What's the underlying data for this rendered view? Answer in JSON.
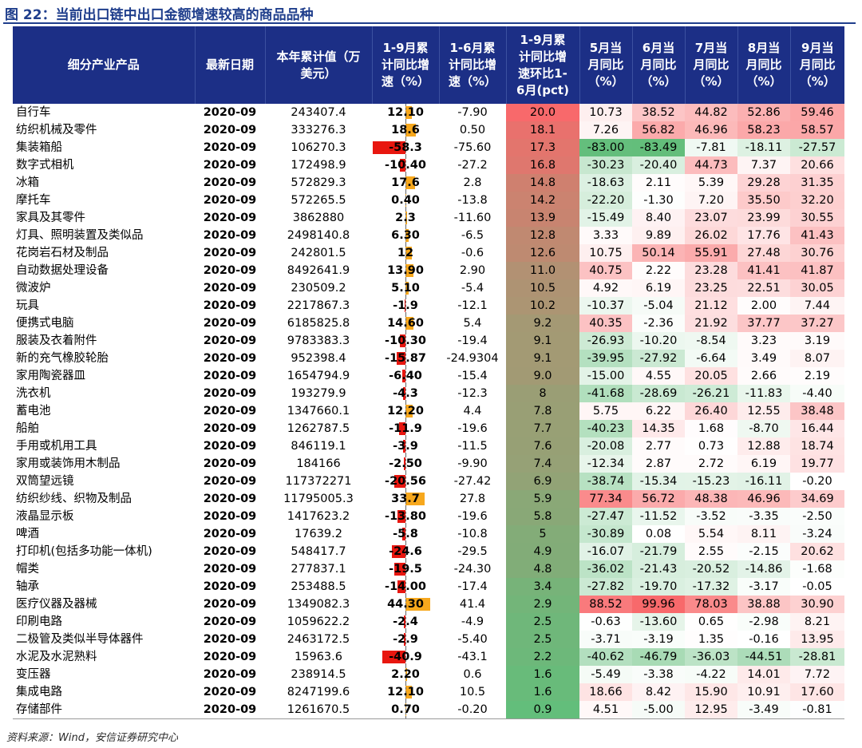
{
  "title": "图 22：当前出口链中出口金额增速较高的商品品种",
  "source": "资料来源：Wind，安信证券研究中心",
  "headers": [
    {
      "lines": [
        "细分产业产品"
      ]
    },
    {
      "lines": [
        "最新日期"
      ]
    },
    {
      "lines": [
        "本年累计值（万",
        "美元）"
      ]
    },
    {
      "lines": [
        "1-9月累",
        "计同比增",
        "速（%）"
      ]
    },
    {
      "lines": [
        "1-6月累",
        "计同比增",
        "速（%）"
      ]
    },
    {
      "lines": [
        "1-9月累",
        "计同比增",
        "速环比1-",
        "6月(pct)"
      ]
    },
    {
      "lines": [
        "5月当",
        "月同比",
        "（%）"
      ]
    },
    {
      "lines": [
        "6月当",
        "月同比",
        "（%）"
      ]
    },
    {
      "lines": [
        "7月当",
        "月同比",
        "（%）"
      ]
    },
    {
      "lines": [
        "8月当",
        "月同比",
        "（%）"
      ]
    },
    {
      "lines": [
        "9月当",
        "月同比",
        "（%）"
      ]
    }
  ],
  "colors": {
    "header_bg": "#1c2f86",
    "title": "#1f3e8c",
    "bar_positive": "#f7a81d",
    "bar_negative": "#e8160f",
    "heat_high": "#f8696b",
    "heat_low": "#63be7b"
  },
  "rows": [
    [
      "自行车",
      "2020-09",
      "243407.4",
      "12.10",
      "-7.90",
      "20.0",
      "10.73",
      "38.52",
      "44.82",
      "52.86",
      "59.46"
    ],
    [
      "纺织机械及零件",
      "2020-09",
      "333276.3",
      "18.6",
      "0.50",
      "18.1",
      "7.26",
      "56.82",
      "46.96",
      "58.23",
      "58.57"
    ],
    [
      "集装箱船",
      "2020-09",
      "106270.3",
      "-58.3",
      "-75.60",
      "17.3",
      "-83.00",
      "-83.49",
      "-7.81",
      "-18.11",
      "-27.57"
    ],
    [
      "数字式相机",
      "2020-09",
      "172498.9",
      "-10.40",
      "-27.2",
      "16.8",
      "-30.23",
      "-20.40",
      "44.73",
      "7.37",
      "20.66"
    ],
    [
      "冰箱",
      "2020-09",
      "572829.3",
      "17.6",
      "2.8",
      "14.8",
      "-18.63",
      "2.11",
      "5.39",
      "29.28",
      "31.35"
    ],
    [
      "摩托车",
      "2020-09",
      "572265.5",
      "0.40",
      "-13.8",
      "14.2",
      "-22.20",
      "-1.30",
      "7.20",
      "35.50",
      "32.20"
    ],
    [
      "家具及其零件",
      "2020-09",
      "3862880",
      "2.3",
      "-11.60",
      "13.9",
      "-15.49",
      "8.40",
      "23.07",
      "23.99",
      "30.55"
    ],
    [
      "灯具、照明装置及类似品",
      "2020-09",
      "2498140.8",
      "6.30",
      "-6.5",
      "12.8",
      "3.33",
      "9.89",
      "26.02",
      "17.76",
      "41.43"
    ],
    [
      "花岗岩石材及制品",
      "2020-09",
      "242801.5",
      "12",
      "-0.6",
      "12.6",
      "10.75",
      "50.14",
      "55.91",
      "27.48",
      "30.76"
    ],
    [
      "自动数据处理设备",
      "2020-09",
      "8492641.9",
      "13.90",
      "2.90",
      "11.0",
      "40.75",
      "2.22",
      "23.28",
      "41.41",
      "41.87"
    ],
    [
      "微波炉",
      "2020-09",
      "230509.2",
      "5.10",
      "-5.4",
      "10.5",
      "4.92",
      "6.19",
      "23.25",
      "22.51",
      "30.05"
    ],
    [
      "玩具",
      "2020-09",
      "2217867.3",
      "-1.9",
      "-12.1",
      "10.2",
      "-10.37",
      "-5.04",
      "21.12",
      "2.00",
      "7.44"
    ],
    [
      "便携式电脑",
      "2020-09",
      "6185825.8",
      "14.60",
      "5.4",
      "9.2",
      "40.35",
      "-2.36",
      "21.92",
      "37.77",
      "37.27"
    ],
    [
      "服装及衣着附件",
      "2020-09",
      "9783383.3",
      "-10.30",
      "-19.4",
      "9.1",
      "-26.93",
      "-10.20",
      "-8.54",
      "3.23",
      "3.19"
    ],
    [
      "新的充气橡胶轮胎",
      "2020-09",
      "952398.4",
      "-15.87",
      "-24.9304",
      "9.1",
      "-39.95",
      "-27.92",
      "-6.64",
      "3.49",
      "8.07"
    ],
    [
      "家用陶瓷器皿",
      "2020-09",
      "1654794.9",
      "-6.40",
      "-15.4",
      "9.0",
      "-15.00",
      "4.55",
      "20.05",
      "2.66",
      "2.19"
    ],
    [
      "洗衣机",
      "2020-09",
      "193279.9",
      "-4.3",
      "-12.3",
      "8",
      "-41.68",
      "-28.69",
      "-26.21",
      "-11.83",
      "-4.40"
    ],
    [
      "蓄电池",
      "2020-09",
      "1347660.1",
      "12.20",
      "4.4",
      "7.8",
      "5.75",
      "6.22",
      "26.40",
      "12.55",
      "38.48"
    ],
    [
      "船舶",
      "2020-09",
      "1262787.5",
      "-11.9",
      "-19.6",
      "7.7",
      "-40.23",
      "14.35",
      "1.68",
      "-8.70",
      "16.44"
    ],
    [
      "手用或机用工具",
      "2020-09",
      "846119.1",
      "-3.9",
      "-11.5",
      "7.6",
      "-20.08",
      "2.77",
      "0.73",
      "12.88",
      "18.74"
    ],
    [
      "家用或装饰用木制品",
      "2020-09",
      "184166",
      "-2.50",
      "-9.90",
      "7.4",
      "-12.34",
      "2.87",
      "2.72",
      "6.19",
      "19.77"
    ],
    [
      "双筒望远镜",
      "2020-09",
      "117372271",
      "-20.56",
      "-27.42",
      "6.9",
      "-38.74",
      "-15.34",
      "-15.23",
      "-16.11",
      "-0.20"
    ],
    [
      "纺织纱线、织物及制品",
      "2020-09",
      "11795005.3",
      "33.7",
      "27.8",
      "5.9",
      "77.34",
      "56.72",
      "48.38",
      "46.96",
      "34.69"
    ],
    [
      "液晶显示板",
      "2020-09",
      "1417623.2",
      "-13.80",
      "-19.6",
      "5.8",
      "-27.47",
      "-11.52",
      "-3.52",
      "-3.35",
      "-2.50"
    ],
    [
      "啤酒",
      "2020-09",
      "17639.2",
      "-5.8",
      "-10.8",
      "5",
      "-30.89",
      "0.08",
      "5.54",
      "8.11",
      "-3.24"
    ],
    [
      "打印机(包括多功能一体机)",
      "2020-09",
      "548417.7",
      "-24.6",
      "-29.5",
      "4.9",
      "-16.07",
      "-21.79",
      "2.55",
      "-2.15",
      "20.62"
    ],
    [
      "帽类",
      "2020-09",
      "277837.1",
      "-19.5",
      "-24.30",
      "4.8",
      "-36.02",
      "-21.43",
      "-20.52",
      "-14.86",
      "-1.68"
    ],
    [
      "轴承",
      "2020-09",
      "253488.5",
      "-14.00",
      "-17.4",
      "3.4",
      "-27.82",
      "-19.70",
      "-17.32",
      "-3.17",
      "-0.05"
    ],
    [
      "医疗仪器及器械",
      "2020-09",
      "1349082.3",
      "44.30",
      "41.4",
      "2.9",
      "88.52",
      "99.96",
      "78.03",
      "38.88",
      "30.90"
    ],
    [
      "印刷电路",
      "2020-09",
      "1059622.2",
      "-2.4",
      "-4.9",
      "2.5",
      "-0.63",
      "-13.60",
      "0.65",
      "-2.98",
      "8.21"
    ],
    [
      "二极管及类似半导体器件",
      "2020-09",
      "2463172.5",
      "-2.9",
      "-5.40",
      "2.5",
      "-3.71",
      "-3.19",
      "1.35",
      "-0.16",
      "13.95"
    ],
    [
      "水泥及水泥熟料",
      "2020-09",
      "15963.6",
      "-40.9",
      "-43.1",
      "2.2",
      "-40.62",
      "-46.79",
      "-36.03",
      "-44.51",
      "-28.81"
    ],
    [
      "变压器",
      "2020-09",
      "238914.5",
      "2.20",
      "0.6",
      "1.6",
      "-5.49",
      "-3.38",
      "-4.22",
      "14.01",
      "7.72"
    ],
    [
      "集成电路",
      "2020-09",
      "8247199.6",
      "12.10",
      "10.5",
      "1.6",
      "18.66",
      "8.42",
      "15.90",
      "10.91",
      "17.60"
    ],
    [
      "存储部件",
      "2020-09",
      "1261670.5",
      "0.70",
      "-0.20",
      "0.9",
      "4.51",
      "-5.00",
      "12.95",
      "-3.49",
      "-0.81"
    ]
  ]
}
